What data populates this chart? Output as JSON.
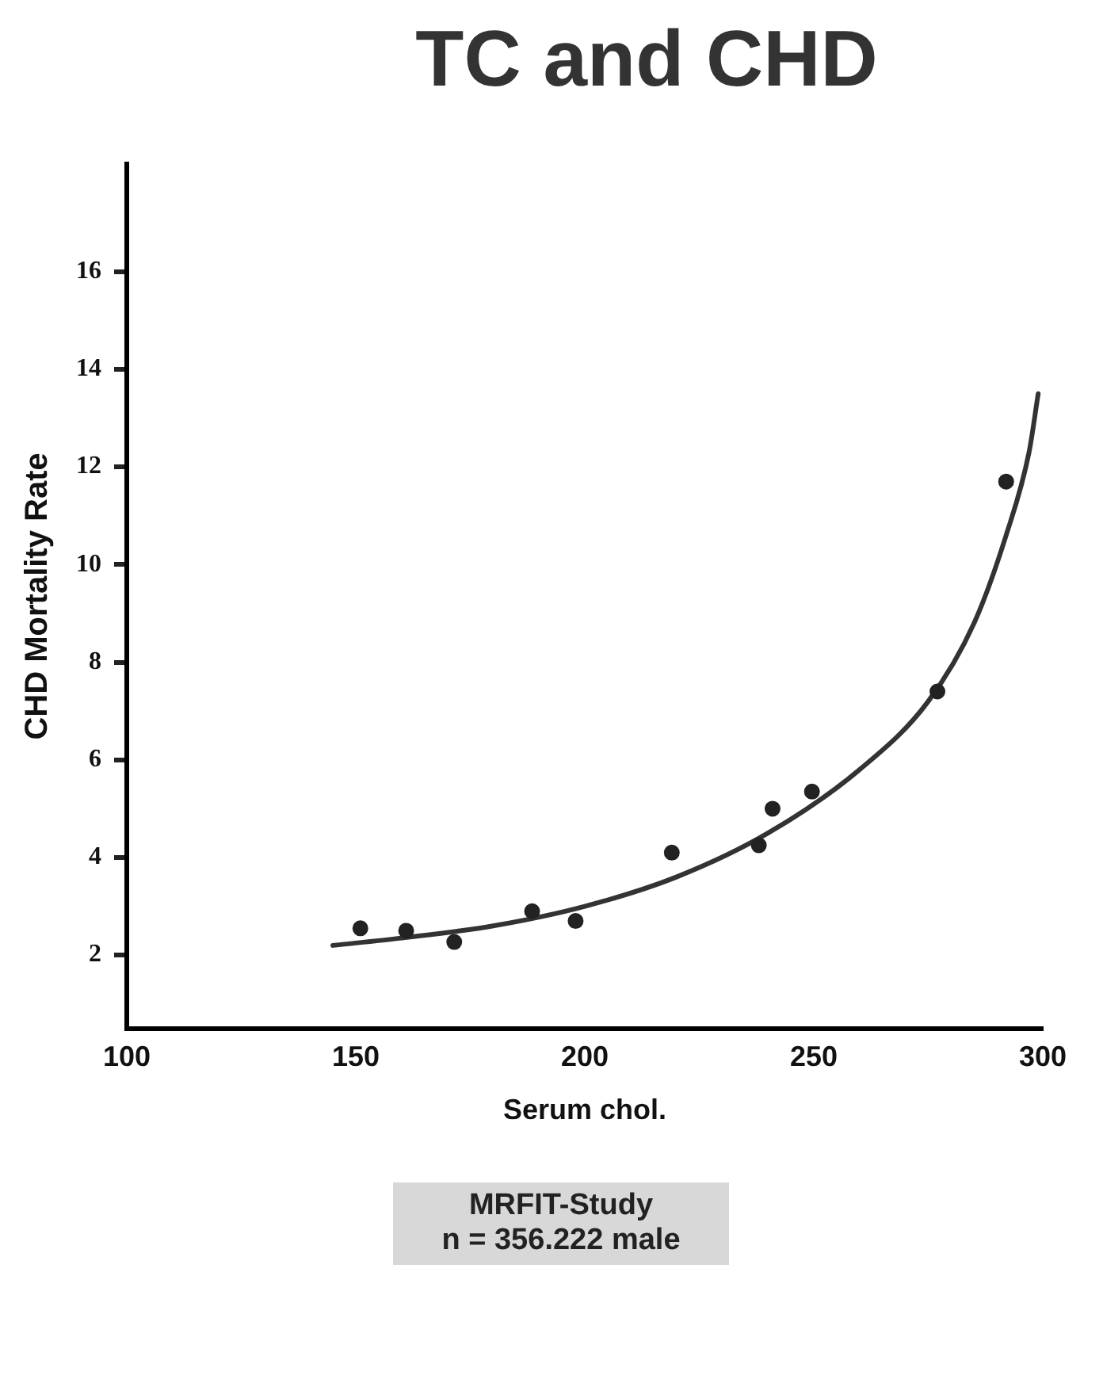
{
  "chart_data": {
    "type": "scatter",
    "title": "TC and CHD",
    "xlabel": "Serum chol.",
    "ylabel": "CHD Mortality Rate",
    "xlim": [
      100,
      300
    ],
    "xticks": [
      100,
      150,
      200,
      250,
      300
    ],
    "ylim": [
      0.5,
      18.2
    ],
    "yticks": [
      2,
      4,
      6,
      8,
      10,
      12,
      14,
      16
    ],
    "grid": false,
    "legend": false,
    "marker": "circle",
    "series": [
      {
        "type": "scatter",
        "color": "#222222",
        "x": [
          151,
          161,
          171.5,
          188.5,
          198,
          219,
          238,
          241,
          249.6,
          277,
          292
        ],
        "values": [
          2.55,
          2.5,
          2.27,
          2.9,
          2.7,
          4.1,
          4.25,
          5.0,
          5.35,
          7.4,
          11.7
        ]
      },
      {
        "type": "line",
        "color": "#333333",
        "marker": "none",
        "line_style": "solid",
        "x": [
          145,
          160,
          180,
          200,
          220,
          240,
          260,
          275,
          285,
          292,
          297,
          299
        ],
        "values": [
          2.2,
          2.35,
          2.6,
          3.0,
          3.6,
          4.5,
          5.8,
          7.2,
          8.8,
          10.6,
          12.3,
          13.5
        ]
      }
    ],
    "annotations": [
      "MRFIT-Study",
      "n = 356.222 male"
    ]
  }
}
